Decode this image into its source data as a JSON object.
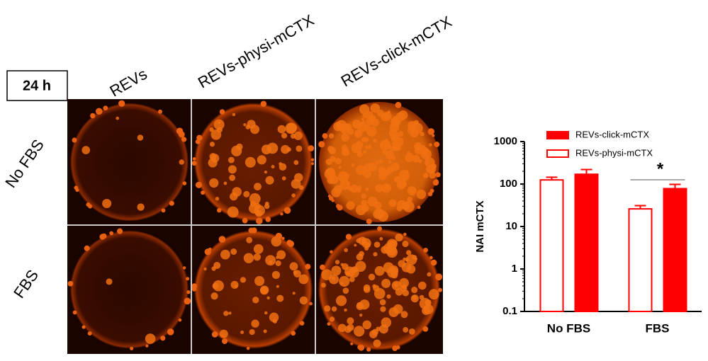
{
  "panel": {
    "time_label": "24 h",
    "columns": [
      "REVs",
      "REVs-physi-mCTX",
      "REVs-click-mCTX"
    ],
    "rows": [
      "No FBS",
      "FBS"
    ]
  },
  "chart_data": {
    "type": "bar",
    "ylabel": "NAI mCTX",
    "log_scale": true,
    "categories": [
      "No FBS",
      "FBS"
    ],
    "series": [
      {
        "name": "REVs-physi-mCTX",
        "color": "#ff0000",
        "filled": false,
        "values": [
          125,
          26
        ],
        "errors": [
          20,
          5
        ]
      },
      {
        "name": "REVs-click-mCTX",
        "color": "#ff0000",
        "filled": true,
        "values": [
          170,
          78
        ],
        "errors": [
          50,
          20
        ]
      }
    ],
    "ylim": [
      0.1,
      1000
    ],
    "yticks": [
      0.1,
      1,
      10,
      100,
      1000
    ],
    "significance": {
      "label": "*"
    }
  }
}
